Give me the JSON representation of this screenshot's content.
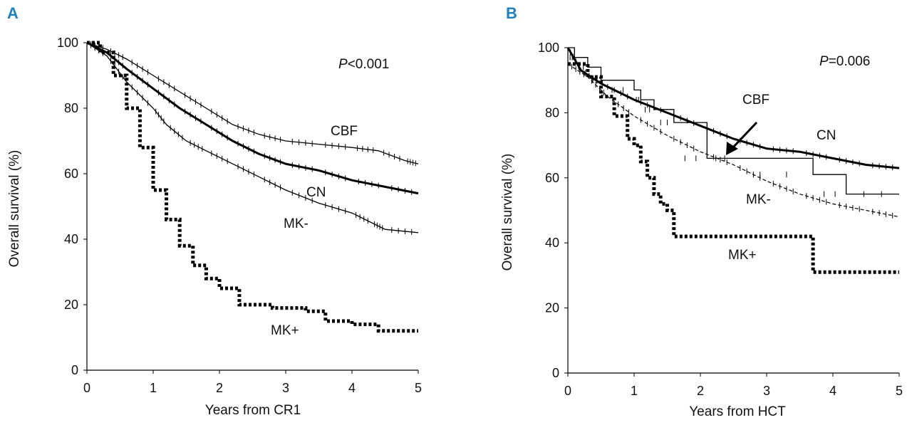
{
  "chart_data": [
    {
      "type": "line",
      "panel": "A",
      "title": "",
      "xlabel": "Years from CR1",
      "ylabel": "Overall survival (%)",
      "xlim": [
        0,
        5
      ],
      "ylim": [
        0,
        100
      ],
      "x_ticks": [
        "0",
        "1",
        "2",
        "3",
        "4",
        "5"
      ],
      "y_ticks": [
        "0",
        "20",
        "40",
        "60",
        "80",
        "100"
      ],
      "annotation": {
        "prefix": "P",
        "text": "<0.001"
      },
      "series": [
        {
          "name": "CBF",
          "style": "thin-censor",
          "x": [
            0,
            0.3,
            0.6,
            1.0,
            1.4,
            1.8,
            2.2,
            2.6,
            3.0,
            3.5,
            4.0,
            4.4,
            4.8,
            5.0
          ],
          "y": [
            100,
            98,
            95,
            90,
            85,
            80,
            75,
            72,
            70,
            69,
            68,
            67,
            64,
            63
          ]
        },
        {
          "name": "CN",
          "style": "thick-censor",
          "x": [
            0,
            0.3,
            0.6,
            1.0,
            1.4,
            1.8,
            2.2,
            2.6,
            3.0,
            3.5,
            4.0,
            4.5,
            5.0
          ],
          "y": [
            100,
            97,
            92,
            86,
            80,
            75,
            70,
            66,
            63,
            61,
            58,
            56,
            54
          ]
        },
        {
          "name": "MK-",
          "style": "thin-censor",
          "x": [
            0,
            0.3,
            0.6,
            1.0,
            1.2,
            1.5,
            1.8,
            2.2,
            2.6,
            3.0,
            3.5,
            4.0,
            4.3,
            4.5,
            5.0
          ],
          "y": [
            100,
            96,
            88,
            80,
            75,
            70,
            67,
            63,
            59,
            55,
            51,
            48,
            45,
            43,
            42
          ]
        },
        {
          "name": "MK+",
          "style": "dotted-steps",
          "x": [
            0,
            0.2,
            0.4,
            0.6,
            0.8,
            1.0,
            1.2,
            1.4,
            1.6,
            1.8,
            2.0,
            2.3,
            2.8,
            3.3,
            3.6,
            4.0,
            4.4,
            5.0
          ],
          "y": [
            100,
            97,
            90,
            80,
            68,
            55,
            46,
            38,
            32,
            28,
            25,
            20,
            19,
            18,
            15,
            14,
            12,
            12
          ]
        }
      ],
      "series_labels": [
        "CBF",
        "CN",
        "MK-",
        "MK+"
      ]
    },
    {
      "type": "line",
      "panel": "B",
      "title": "",
      "xlabel": "Years from HCT",
      "ylabel": "Overall survival (%)",
      "xlim": [
        0,
        5
      ],
      "ylim": [
        0,
        100
      ],
      "x_ticks": [
        "0",
        "1",
        "2",
        "3",
        "4",
        "5"
      ],
      "y_ticks": [
        "0",
        "20",
        "40",
        "60",
        "80",
        "100"
      ],
      "annotation": {
        "prefix": "P",
        "text": "=0.006"
      },
      "series": [
        {
          "name": "CBF",
          "style": "thin-steps",
          "x": [
            0,
            0.1,
            0.3,
            0.5,
            1.0,
            1.1,
            1.3,
            1.6,
            2.1,
            2.5,
            3.7,
            4.2,
            5.0
          ],
          "y": [
            100,
            97,
            94,
            90,
            87,
            84,
            81,
            77,
            66,
            66,
            61,
            55,
            55
          ]
        },
        {
          "name": "CN",
          "style": "thick-censor",
          "x": [
            0,
            0.2,
            0.5,
            1.0,
            1.5,
            2.0,
            2.5,
            3.0,
            3.5,
            4.0,
            4.5,
            5.0
          ],
          "y": [
            100,
            93,
            89,
            84,
            80,
            76,
            72,
            69,
            68,
            66,
            64,
            63
          ]
        },
        {
          "name": "MK-",
          "style": "dashed-censor",
          "x": [
            0,
            0.3,
            0.6,
            1.0,
            1.5,
            2.0,
            2.5,
            3.0,
            3.5,
            4.0,
            4.5,
            5.0
          ],
          "y": [
            95,
            91,
            85,
            79,
            73,
            68,
            64,
            59,
            55,
            52,
            50,
            48
          ]
        },
        {
          "name": "MK+",
          "style": "dotted-steps",
          "x": [
            0,
            0.3,
            0.5,
            0.7,
            0.9,
            1.0,
            1.1,
            1.2,
            1.3,
            1.4,
            1.5,
            1.6,
            3.7,
            5.0
          ],
          "y": [
            95,
            91,
            85,
            79,
            72,
            70,
            65,
            60,
            55,
            52,
            50,
            42,
            31,
            31
          ]
        }
      ],
      "series_labels": [
        "CBF",
        "CN",
        "MK-",
        "MK+"
      ]
    }
  ]
}
